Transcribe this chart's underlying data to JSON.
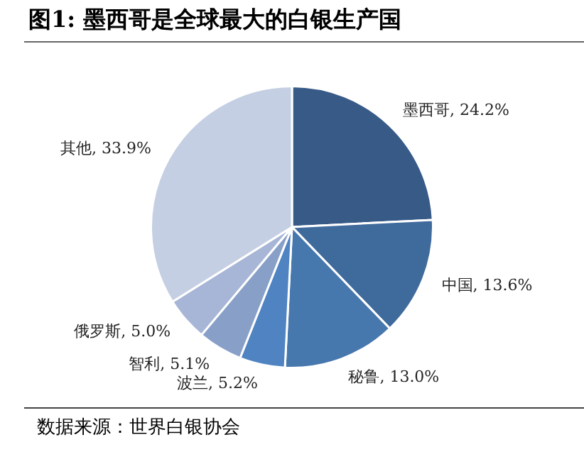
{
  "chart_data": {
    "type": "pie",
    "title": "图1: 墨西哥是全球最大的白银生产国",
    "categories": [
      "墨西哥",
      "中国",
      "秘鲁",
      "波兰",
      "智利",
      "俄罗斯",
      "其他"
    ],
    "values": [
      24.2,
      13.6,
      13.0,
      5.2,
      5.1,
      5.0,
      33.9
    ],
    "value_labels": [
      "24.2%",
      "13.6%",
      "13.0%",
      "5.2%",
      "5.1%",
      "5.0%",
      "33.9%"
    ],
    "colors": [
      "#375a87",
      "#3f6a9c",
      "#4677ad",
      "#4f83c1",
      "#889fc8",
      "#a7b6d6",
      "#c5cfe3"
    ],
    "annotations": [
      "数据来源：世界白银协会"
    ]
  }
}
